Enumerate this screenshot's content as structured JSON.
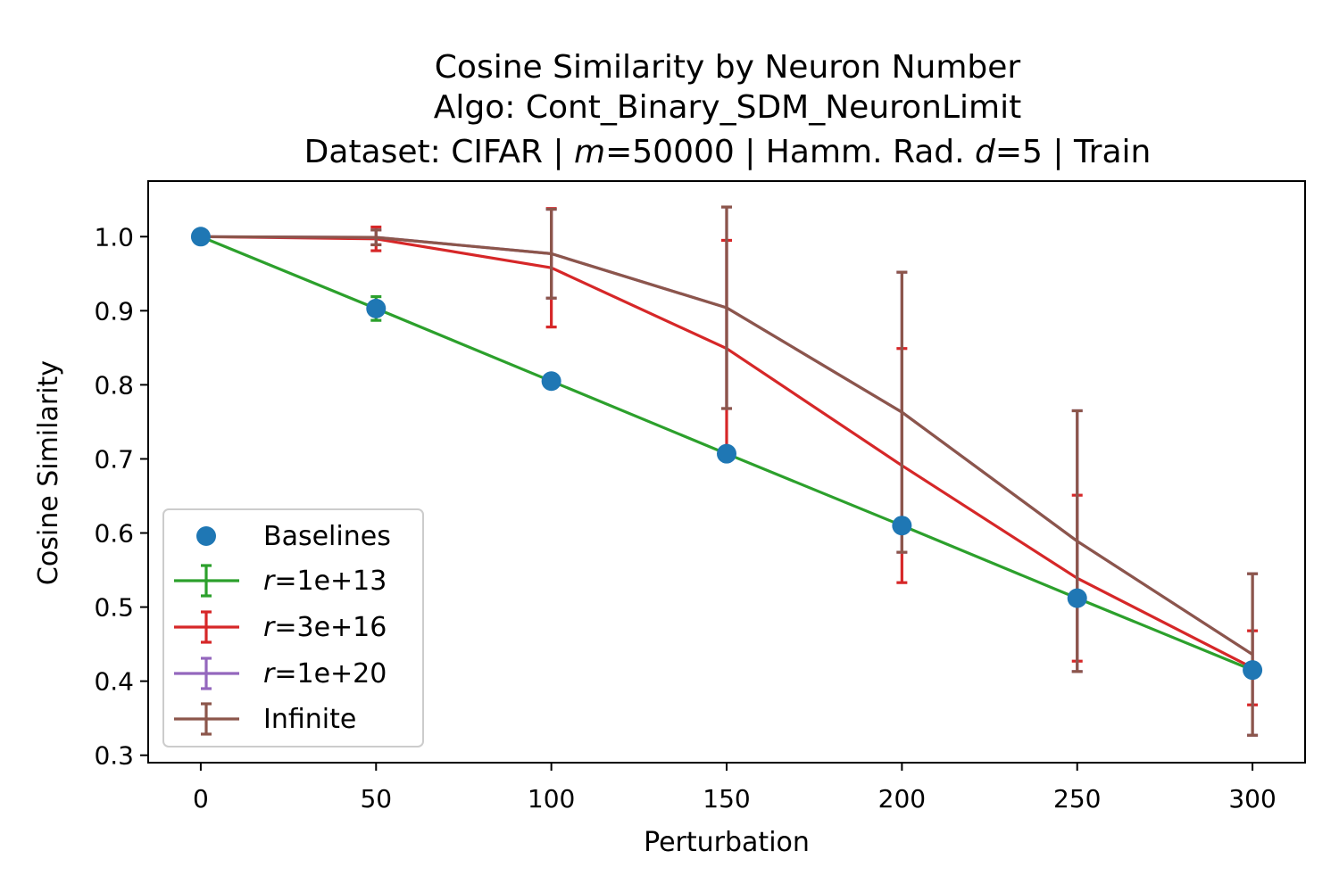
{
  "chart_data": {
    "type": "line",
    "title_lines": [
      "Cosine Similarity by Neuron Number",
      "Algo: Cont_Binary_SDM_NeuronLimit",
      "Dataset: CIFAR | m=50000 | Hamm. Rad. d=5 | Train"
    ],
    "xlabel": "Perturbation",
    "ylabel": "Cosine Similarity",
    "x": [
      0,
      50,
      100,
      150,
      200,
      250,
      300
    ],
    "xticks": [
      "0",
      "50",
      "100",
      "150",
      "200",
      "250",
      "300"
    ],
    "yticks": [
      "0.3",
      "0.4",
      "0.5",
      "0.6",
      "0.7",
      "0.8",
      "0.9",
      "1.0"
    ],
    "xlim": [
      -15,
      315
    ],
    "ylim": [
      0.29,
      1.075
    ],
    "grid": false,
    "legend_position": "lower left",
    "baselines": {
      "name": "Baselines",
      "color": "#1f77b4",
      "values": [
        1.0,
        0.903,
        0.805,
        0.707,
        0.61,
        0.512,
        0.415
      ]
    },
    "series": [
      {
        "name": "r=1e+13",
        "color": "#2ca02c",
        "values": [
          1.0,
          0.903,
          0.805,
          0.707,
          0.61,
          0.512,
          0.415
        ],
        "errors": [
          0.0,
          0.016,
          0.0,
          0.0,
          0.0,
          0.0,
          0.0
        ]
      },
      {
        "name": "r=3e+16",
        "color": "#d62728",
        "values": [
          1.0,
          0.997,
          0.958,
          0.849,
          0.691,
          0.539,
          0.418
        ],
        "errors": [
          0.0,
          0.016,
          0.08,
          0.146,
          0.158,
          0.112,
          0.05
        ]
      },
      {
        "name": "r=1e+20",
        "color": "#9467bd",
        "values": [
          1.0,
          0.999,
          0.977,
          0.904,
          0.763,
          0.589,
          0.436
        ],
        "errors": [
          0.0,
          0.01,
          0.06,
          0.136,
          0.189,
          0.176,
          0.109
        ]
      },
      {
        "name": "Infinite",
        "color": "#8c564b",
        "values": [
          1.0,
          0.999,
          0.977,
          0.904,
          0.763,
          0.589,
          0.436
        ],
        "errors": [
          0.0,
          0.01,
          0.06,
          0.136,
          0.189,
          0.176,
          0.109
        ]
      }
    ]
  }
}
